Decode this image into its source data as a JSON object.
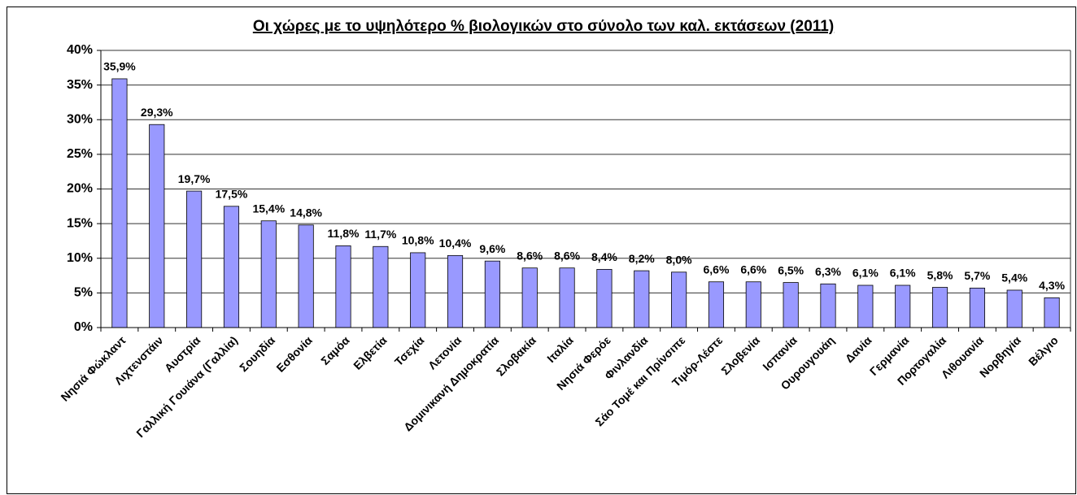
{
  "chart_data": {
    "type": "bar",
    "title": "Οι χώρες με το υψηλότερο % βιολογικών στο σύνολο των καλ. εκτάσεων (2011)",
    "categories": [
      "Νησιά Φώκλαντ",
      "Λιχτενστάιν",
      "Αυστρία",
      "Γαλλική Γουιάνα (Γαλλία)",
      "Σουηδία",
      "Εσθονία",
      "Σαμόα",
      "Ελβετία",
      "Τσεχία",
      "Λετονία",
      "Δομινικανή Δημοκρατία",
      "Σλοβακία",
      "Ιταλία",
      "Νησιά Φερόε",
      "Φινλανδία",
      "Σάο Τομέ και Πρίνσιπε",
      "Τιμόρ-Λέστε",
      "Σλοβενία",
      "Ισπανία",
      "Ουρουγουάη",
      "Δανία",
      "Γερμανία",
      "Πορτογαλία",
      "Λιθουανία",
      "Νορβηγία",
      "Βέλγιο"
    ],
    "values": [
      35.9,
      29.3,
      19.7,
      17.5,
      15.4,
      14.8,
      11.8,
      11.7,
      10.8,
      10.4,
      9.6,
      8.6,
      8.6,
      8.4,
      8.2,
      8.0,
      6.6,
      6.6,
      6.5,
      6.3,
      6.1,
      6.1,
      5.8,
      5.7,
      5.4,
      4.3
    ],
    "value_labels": [
      "35,9%",
      "29,3%",
      "19,7%",
      "17,5%",
      "15,4%",
      "14,8%",
      "11,8%",
      "11,7%",
      "10,8%",
      "10,4%",
      "9,6%",
      "8,6%",
      "8,6%",
      "8,4%",
      "8,2%",
      "8,0%",
      "6,6%",
      "6,6%",
      "6,5%",
      "6,3%",
      "6,1%",
      "6,1%",
      "5,8%",
      "5,7%",
      "5,4%",
      "4,3%"
    ],
    "color": "#9999ff",
    "ylim": [
      0,
      40
    ],
    "yticks": [
      {
        "value": 0,
        "label": "0%"
      },
      {
        "value": 5,
        "label": "5%"
      },
      {
        "value": 10,
        "label": "10%"
      },
      {
        "value": 15,
        "label": "15%"
      },
      {
        "value": 20,
        "label": "20%"
      },
      {
        "value": 25,
        "label": "25%"
      },
      {
        "value": 30,
        "label": "30%"
      },
      {
        "value": 35,
        "label": "35%"
      },
      {
        "value": 40,
        "label": "40%"
      }
    ],
    "grid": true
  }
}
